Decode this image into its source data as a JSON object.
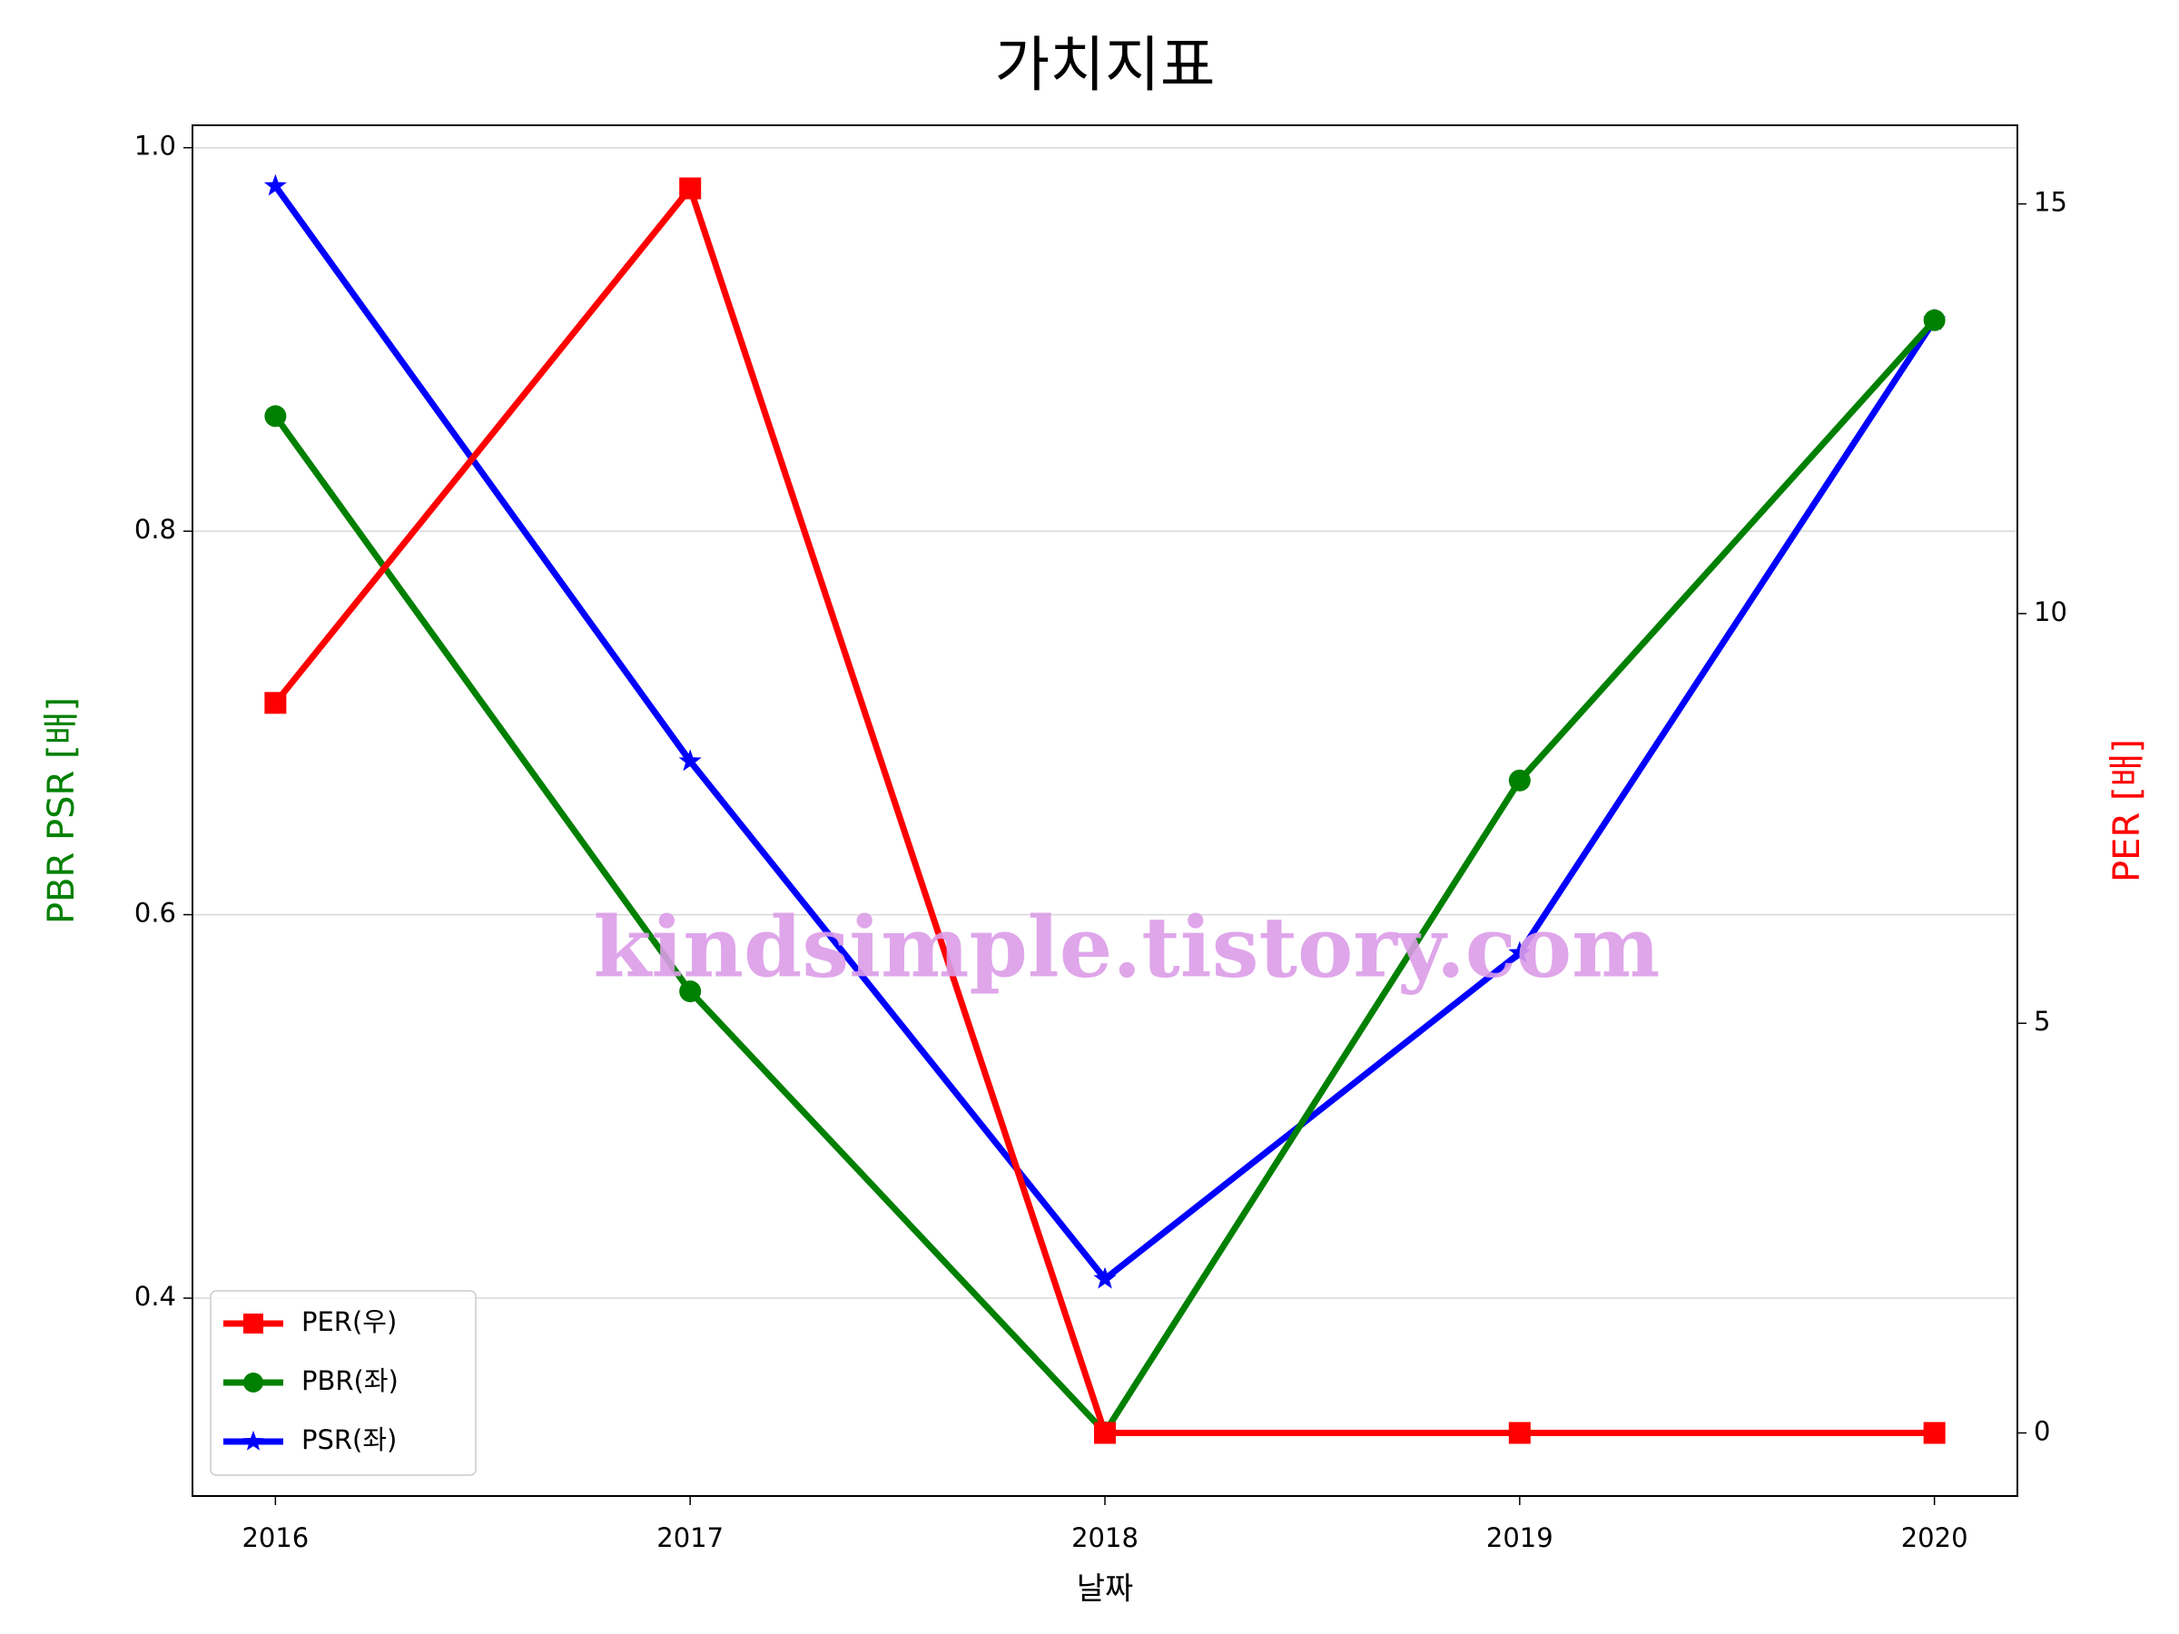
{
  "chart_data": {
    "type": "line",
    "title": "가치지표",
    "xlabel": "날짜",
    "ylabel": "PBR PSR [배]",
    "y2label": "PER [배]",
    "ylabel_color": "green",
    "y2label_color": "red",
    "x": [
      2016,
      2017,
      2018,
      2019,
      2020
    ],
    "xlim": [
      2015.8,
      2020.2
    ],
    "xticks": [
      2016,
      2017,
      2018,
      2019,
      2020
    ],
    "ylim": [
      0.2968,
      1.0117
    ],
    "yticks": [
      0.4,
      0.6,
      0.8,
      {
        "value": 1.0,
        "label": "1.0"
      }
    ],
    "y2lim": [
      -0.77,
      15.96
    ],
    "y2ticks": [
      0,
      5,
      10,
      15
    ],
    "grid": true,
    "legend": "lower left",
    "watermark": "kindsimple.tistory.com",
    "series": [
      {
        "name": "PER(우)",
        "color": "red",
        "marker": "square",
        "axis": "y2",
        "values": [
          8.91,
          15.19,
          0,
          0,
          0
        ]
      },
      {
        "name": "PBR(좌)",
        "color": "green",
        "marker": "circle",
        "values": [
          0.86,
          0.56,
          0.33,
          0.67,
          0.91
        ]
      },
      {
        "name": "PSR(좌)",
        "color": "blue",
        "marker": "star",
        "values": [
          0.98,
          0.68,
          0.41,
          0.58,
          0.91
        ]
      }
    ]
  }
}
